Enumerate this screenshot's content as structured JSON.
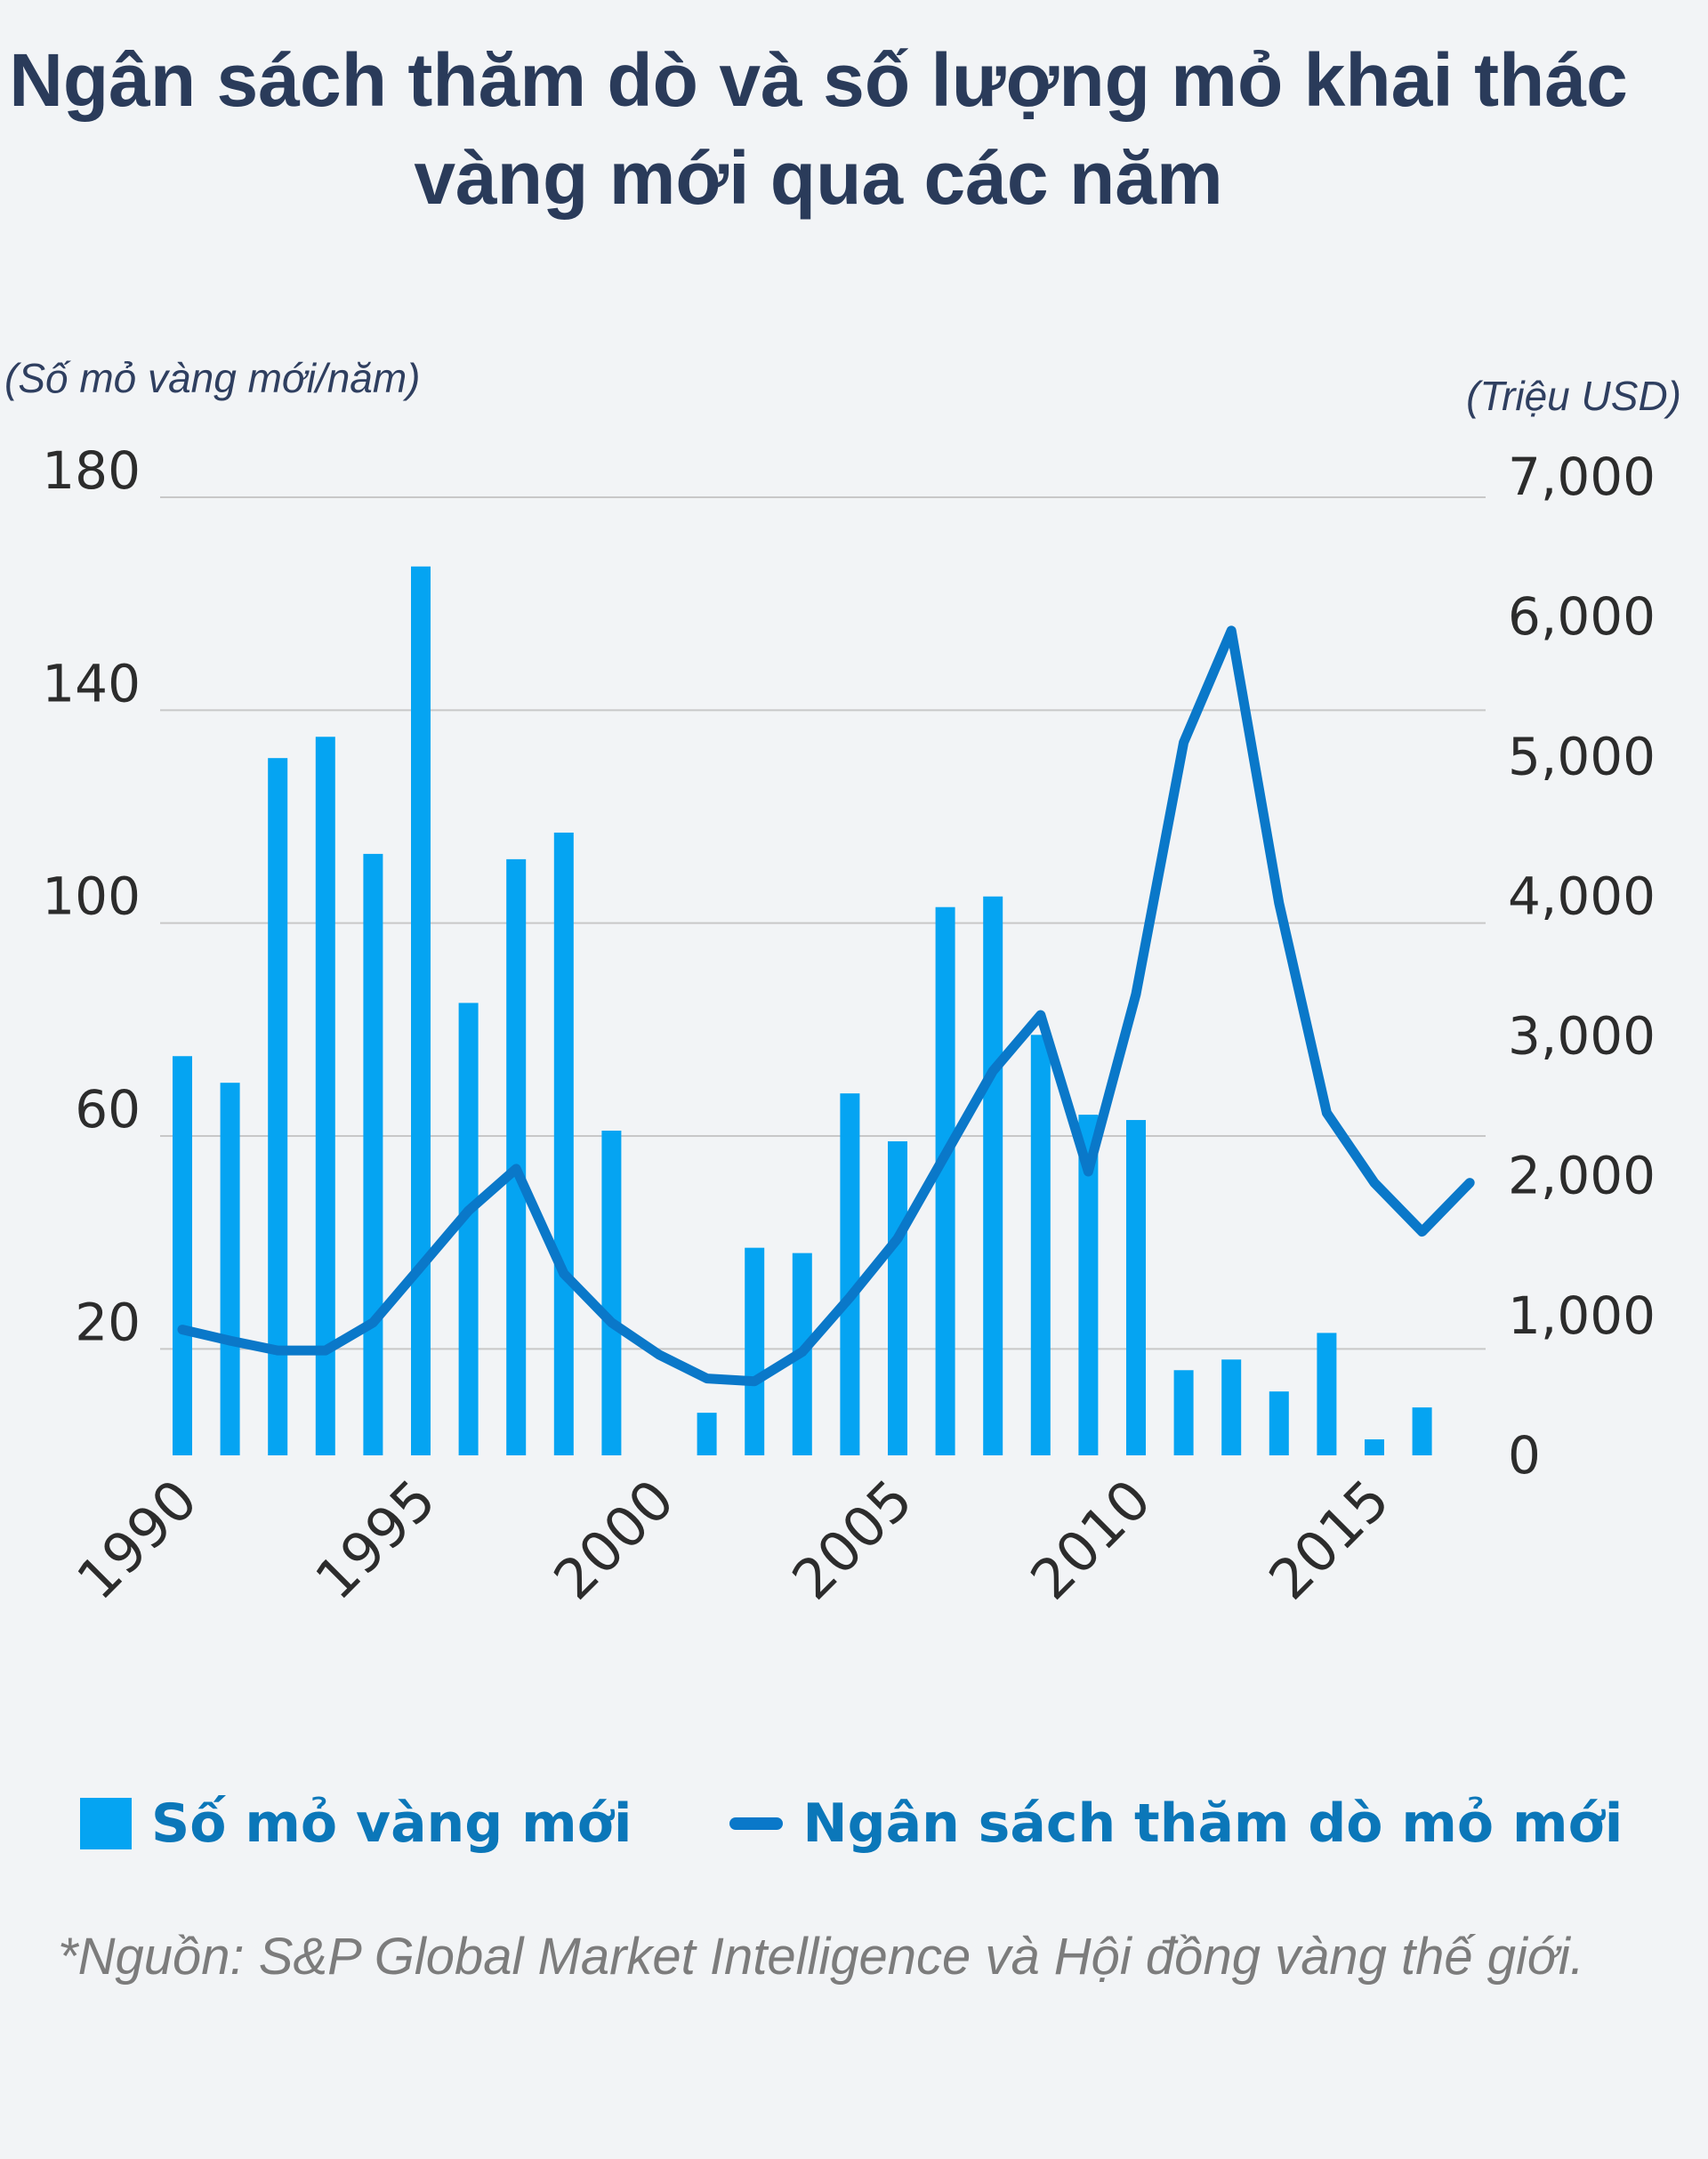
{
  "title": "Ngân sách thăm dò và số lượng mỏ khai thác vàng mới qua các năm",
  "axis_units": {
    "left": "(Số mỏ vàng mới/năm)",
    "right": "(Triệu USD)"
  },
  "legend": {
    "bar_label": "Số mỏ vàng mới",
    "line_label": "Ngân sách thăm dò mỏ mới"
  },
  "source": "*Nguồn: S&P Global Market Intelligence và Hội đồng vàng thế giới.",
  "colors": {
    "bar": "#05a4f2",
    "line": "#0a78c9",
    "title": "#2a3b5a",
    "legend_text": "#0b77b9",
    "gridline": "#c8c8c8"
  },
  "chart_data": {
    "type": "bar",
    "title": "Ngân sách thăm dò và số lượng mỏ khai thác vàng mới qua các năm",
    "x": [
      1990,
      1991,
      1992,
      1993,
      1994,
      1995,
      1996,
      1997,
      1998,
      1999,
      2000,
      2001,
      2002,
      2003,
      2004,
      2005,
      2006,
      2007,
      2008,
      2009,
      2010,
      2011,
      2012,
      2013,
      2014,
      2015,
      2016,
      2017
    ],
    "x_tick_labels": [
      "1990",
      "1995",
      "2000",
      "2005",
      "2010",
      "2015"
    ],
    "series": [
      {
        "name": "Số mỏ vàng mới",
        "type": "bar",
        "axis": "left",
        "values": [
          75,
          70,
          131,
          135,
          113,
          167,
          85,
          112,
          117,
          61,
          null,
          8,
          39,
          38,
          68,
          59,
          103,
          105,
          79,
          64,
          63,
          16,
          18,
          12,
          23,
          3,
          9,
          null
        ]
      },
      {
        "name": "Ngân sách thăm dò mỏ mới",
        "type": "line",
        "axis": "right",
        "values": [
          900,
          820,
          750,
          750,
          950,
          1350,
          1750,
          2050,
          1300,
          950,
          720,
          550,
          530,
          740,
          1130,
          1550,
          2150,
          2750,
          3150,
          2030,
          3300,
          5100,
          5900,
          3950,
          2450,
          1950,
          1600,
          1950
        ]
      }
    ],
    "y_left": {
      "ylim": [
        0,
        180
      ],
      "ticks": [
        20,
        60,
        100,
        140,
        180
      ]
    },
    "y_right": {
      "ylim": [
        0,
        7000
      ],
      "ticks": [
        "0",
        "1,000",
        "2,000",
        "3,000",
        "4,000",
        "5,000",
        "6,000",
        "7,000"
      ],
      "tick_values": [
        0,
        1000,
        2000,
        3000,
        4000,
        5000,
        6000,
        7000
      ]
    },
    "grid": true,
    "legend_position": "bottom"
  }
}
